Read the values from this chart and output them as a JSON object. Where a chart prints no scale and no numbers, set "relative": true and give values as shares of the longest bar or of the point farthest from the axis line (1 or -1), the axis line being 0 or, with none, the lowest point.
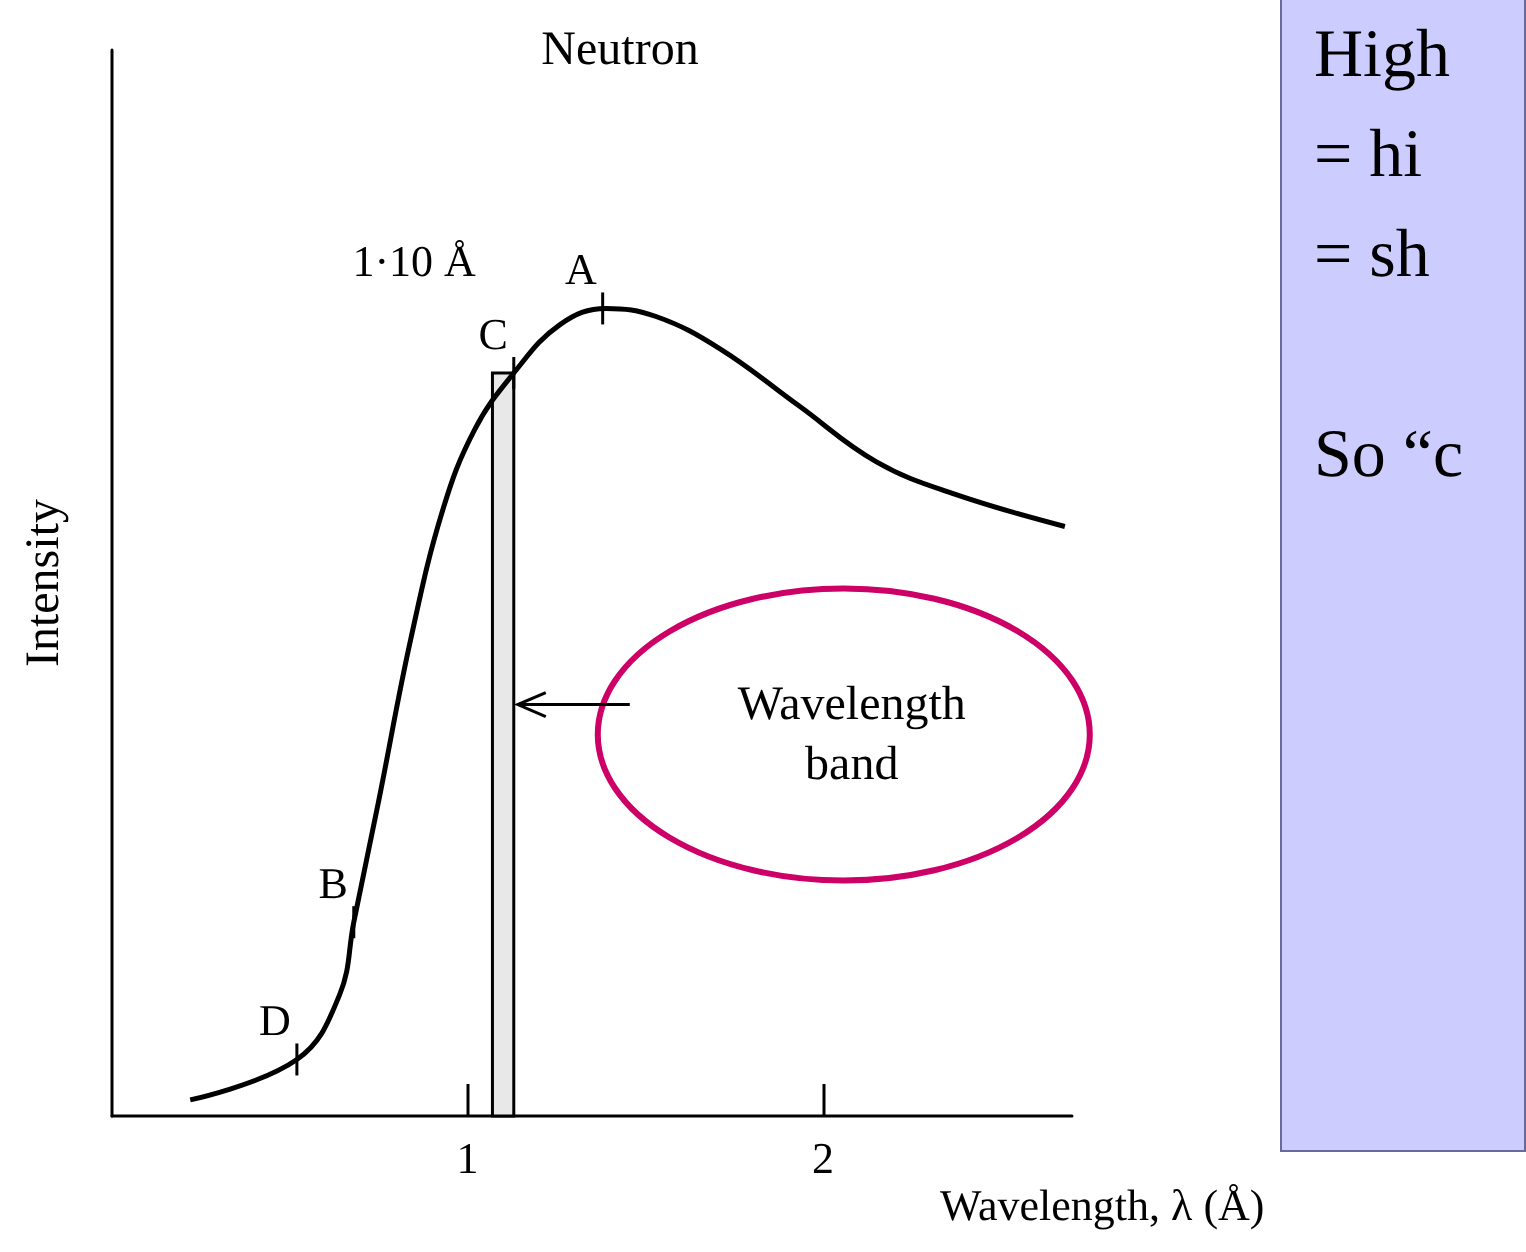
{
  "chart_data": {
    "type": "line",
    "title": "Neutron",
    "xlabel": "Wavelength, λ (Å)",
    "ylabel": "Intensity",
    "relative": true,
    "x": [
      0.22,
      0.52,
      0.64,
      0.68,
      0.75,
      0.84,
      0.93,
      1.02,
      1.13,
      1.26,
      1.39,
      1.53,
      1.71,
      1.93,
      2.15,
      2.37,
      2.68
    ],
    "series": [
      {
        "color": "#000000",
        "values": [
          0.02,
          0.07,
          0.15,
          0.24,
          0.39,
          0.59,
          0.75,
          0.85,
          0.92,
          0.98,
          1.0,
          0.99,
          0.95,
          0.88,
          0.81,
          0.77,
          0.73
        ]
      }
    ],
    "xlim": [
      0,
      2.7
    ],
    "xticks": [
      1,
      2
    ],
    "marker": "none",
    "grid": false,
    "bands": [
      {
        "axis": "x",
        "from": 1.07,
        "to": 1.13,
        "label": "Wavelength band"
      }
    ],
    "annotations": [
      {
        "text": "A",
        "x": 1.38,
        "y": 1.0
      },
      {
        "text": "C",
        "x": 1.13,
        "y": 0.92
      },
      {
        "text": "B",
        "x": 0.68,
        "y": 0.24
      },
      {
        "text": "D",
        "x": 0.52,
        "y": 0.07
      },
      "1·10 Å",
      "High",
      "= hi",
      "= sh",
      "So “c"
    ]
  }
}
